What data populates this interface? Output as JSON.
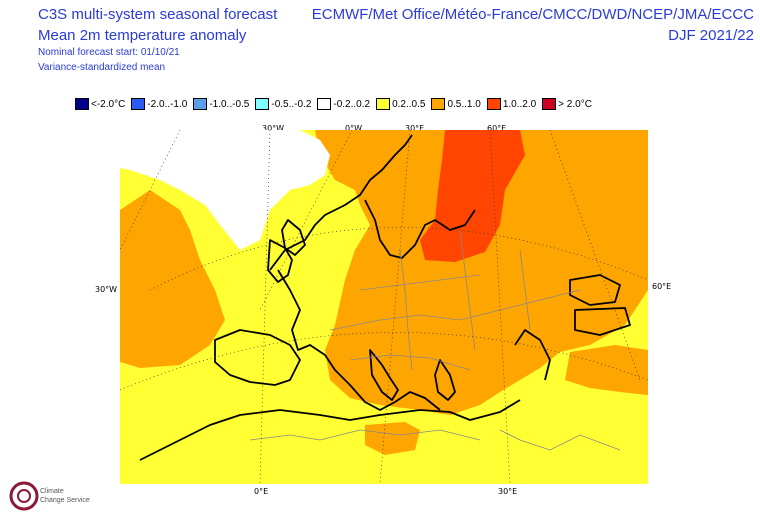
{
  "header": {
    "title": "C3S multi-system seasonal forecast",
    "subtitle": "Mean 2m temperature anomaly",
    "note_start": "Nominal forecast start: 01/10/21",
    "note_variance": "Variance-standardized mean",
    "systems": "ECMWF/Met Office/Météo-France/CMCC/DWD/NCEP/JMA/ECCC",
    "season": "DJF 2021/22"
  },
  "legend": [
    {
      "label": "<-2.0°C",
      "color": "#00008b"
    },
    {
      "label": "-2.0..-1.0",
      "color": "#2b5bf0"
    },
    {
      "label": "-1.0..-0.5",
      "color": "#5aa0e8"
    },
    {
      "label": "-0.5..-0.2",
      "color": "#7fffff"
    },
    {
      "label": "-0.2..0.2",
      "color": "#ffffff"
    },
    {
      "label": "0.2..0.5",
      "color": "#ffff33"
    },
    {
      "label": "0.5..1.0",
      "color": "#ffa500"
    },
    {
      "label": "1.0..2.0",
      "color": "#ff4500"
    },
    {
      "label": "> 2.0°C",
      "color": "#cc0022"
    }
  ],
  "axes": {
    "top": [
      "30°W",
      "0°W",
      "30°E",
      "60°E"
    ],
    "left": [
      "30°W"
    ],
    "right": [
      "60°E"
    ],
    "bottom": [
      "0°E",
      "30°E"
    ]
  },
  "logo": {
    "line1": "Climate",
    "line2": "Change Service"
  }
}
